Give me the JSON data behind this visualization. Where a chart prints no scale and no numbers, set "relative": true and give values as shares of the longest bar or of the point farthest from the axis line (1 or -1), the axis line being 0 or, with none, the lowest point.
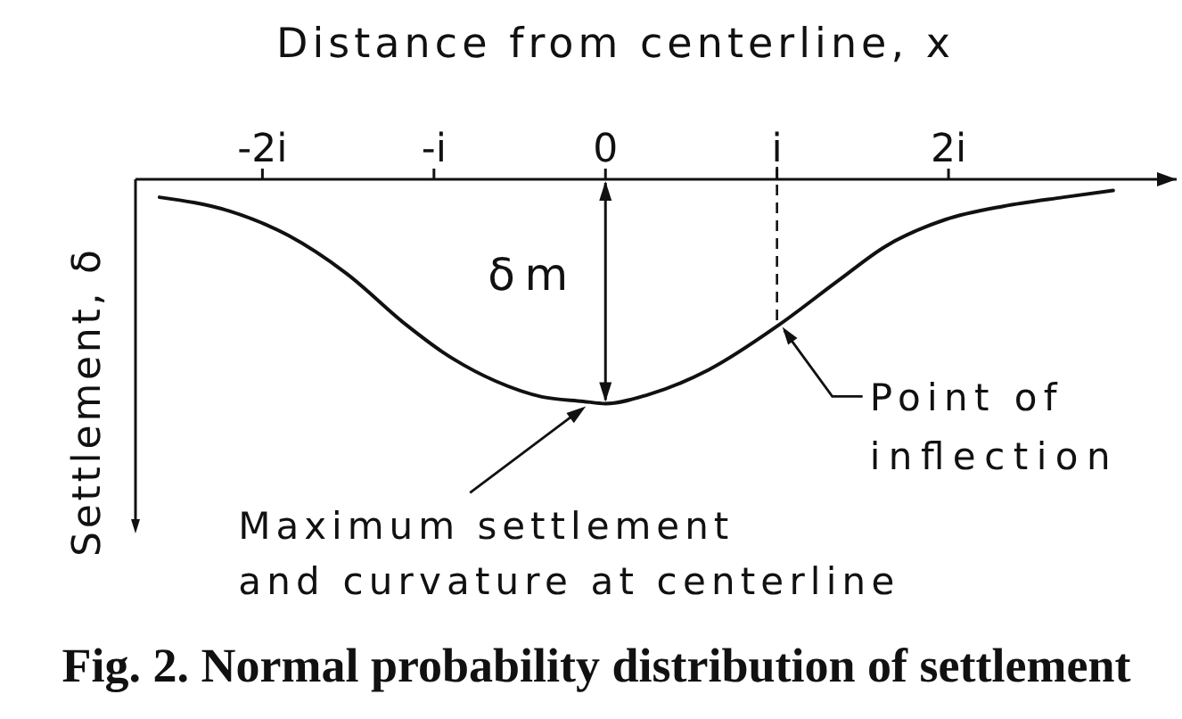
{
  "chart_data": {
    "type": "line",
    "relative": true,
    "xlabel": "Distance from centerline, x",
    "ylabel": "Settlement, δ",
    "x": [
      -2.6,
      -2.2,
      -1.85,
      -1.51,
      -1.16,
      -0.95,
      -0.64,
      -0.37,
      -0.13,
      0,
      0.25,
      0.6,
      1.01,
      1.36,
      1.63,
      1.98,
      2.32,
      2.67,
      2.96
    ],
    "series": [
      {
        "color": "#111111",
        "values": [
          -0.08,
          -0.14,
          -0.25,
          -0.42,
          -0.65,
          -0.77,
          -0.9,
          -0.97,
          -0.99,
          -1,
          -0.96,
          -0.85,
          -0.65,
          -0.45,
          -0.3,
          -0.18,
          -0.12,
          -0.08,
          -0.05
        ]
      }
    ],
    "xlim": [
      -2.74,
      3.33
    ],
    "xticks": [
      {
        "value": -2,
        "label": "-2i"
      },
      {
        "value": -1,
        "label": "-i"
      },
      0,
      {
        "value": 1,
        "label": "i"
      },
      {
        "value": 2,
        "label": "2i"
      }
    ],
    "ref_lines": [
      {
        "axis": "x",
        "value": 1,
        "line_style": "dashed"
      }
    ],
    "annotations": [
      "δ m",
      {
        "text": "Point of inflection",
        "x": 1,
        "y": -0.65
      },
      "Maximum settlement and curvature at centerline",
      "Fig. 2. Normal probability distribution of settlement"
    ]
  }
}
